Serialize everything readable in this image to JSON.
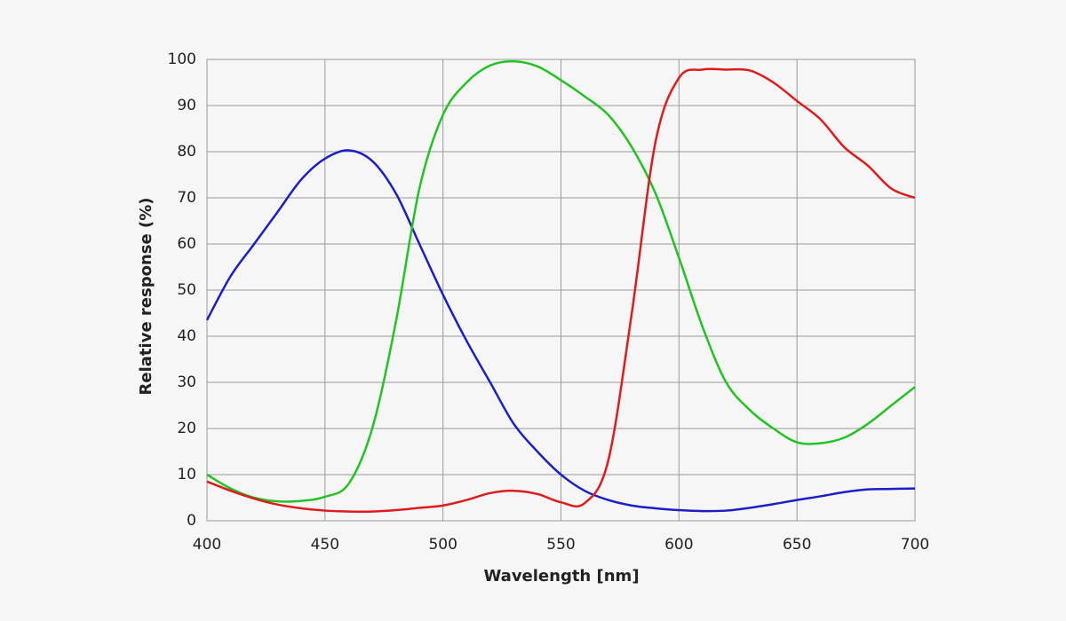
{
  "chart_data": {
    "type": "line",
    "x_label": "Wavelength [nm]",
    "y_label": "Relative response (%)",
    "x": [
      400,
      410,
      420,
      430,
      440,
      450,
      460,
      470,
      480,
      490,
      500,
      510,
      520,
      530,
      540,
      550,
      560,
      570,
      580,
      590,
      600,
      610,
      620,
      630,
      640,
      650,
      660,
      670,
      680,
      690,
      700
    ],
    "series": [
      {
        "color": "#1c1ec8",
        "values": [
          43.5,
          53,
          60,
          67,
          74,
          78.5,
          80.3,
          78,
          71,
          60,
          49,
          39,
          30,
          21,
          15,
          10,
          6.5,
          4.5,
          3.3,
          2.7,
          2.3,
          2.1,
          2.2,
          2.8,
          3.6,
          4.5,
          5.3,
          6.2,
          6.8,
          6.9,
          7
        ]
      },
      {
        "color": "#22c322",
        "values": [
          10,
          7,
          5,
          4.2,
          4.3,
          5.2,
          8,
          20,
          43,
          72,
          88,
          95,
          98.7,
          99.6,
          98.5,
          95.5,
          92,
          88,
          81,
          71,
          57,
          42,
          30,
          24,
          20,
          17,
          16.8,
          18,
          21,
          25,
          29
        ]
      },
      {
        "color": "#e01b1b",
        "values": [
          8.5,
          6.5,
          4.8,
          3.5,
          2.7,
          2.2,
          2,
          2,
          2.3,
          2.8,
          3.3,
          4.5,
          6,
          6.5,
          5.8,
          4,
          3.8,
          13,
          45,
          82,
          96,
          97.8,
          97.8,
          97.6,
          95,
          91,
          87,
          81,
          77,
          72,
          70
        ]
      }
    ],
    "xlim": [
      400,
      700
    ],
    "xticks": [
      400,
      450,
      500,
      550,
      600,
      650,
      700
    ],
    "ylim": [
      0,
      100
    ],
    "yticks": [
      0,
      10,
      20,
      30,
      40,
      50,
      60,
      70,
      80,
      90,
      100
    ],
    "grid": true
  }
}
